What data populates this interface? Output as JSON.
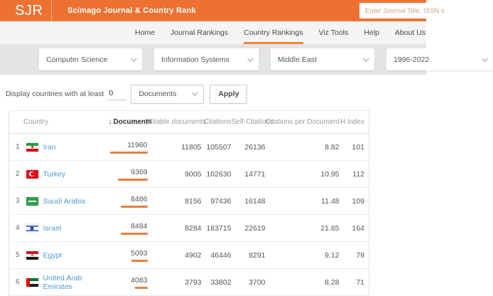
{
  "header": {
    "logo": "SJR",
    "title": "Scimago Journal & Country Rank",
    "search_placeholder": "Enter Journal Title, ISSN o"
  },
  "nav": {
    "items": [
      {
        "label": "Home",
        "active": false
      },
      {
        "label": "Journal Rankings",
        "active": false
      },
      {
        "label": "Country Rankings",
        "active": true
      },
      {
        "label": "Viz Tools",
        "active": false
      },
      {
        "label": "Help",
        "active": false
      },
      {
        "label": "About Us",
        "active": false
      }
    ]
  },
  "filters": {
    "subject_area": "Computer Science",
    "subject_category": "Information Systems",
    "region": "Middle East",
    "year_range": "1996-2022"
  },
  "controls": {
    "display_label": "Display countries with at least",
    "min_value": "0",
    "metric": "Documents",
    "apply_label": "Apply"
  },
  "table": {
    "sort_icon": "↓",
    "sorted_column": "Documents",
    "columns": [
      "Country",
      "Documents",
      "Citable documents",
      "Citations",
      "Self-Citations",
      "Citations per Document",
      "H index"
    ],
    "rows": [
      {
        "rank": "1",
        "country": "Iran",
        "flag": "iran",
        "documents": 11960,
        "citable_documents": 11805,
        "citations": 105507,
        "self_citations": 26136,
        "citations_per_document": "8.82",
        "h_index": 101
      },
      {
        "rank": "2",
        "country": "Turkey",
        "flag": "turkey",
        "documents": 9369,
        "citable_documents": 9005,
        "citations": 102630,
        "self_citations": 14771,
        "citations_per_document": "10.95",
        "h_index": 112
      },
      {
        "rank": "3",
        "country": "Saudi Arabia",
        "flag": "saudi",
        "documents": 8486,
        "citable_documents": 8156,
        "citations": 97436,
        "self_citations": 16148,
        "citations_per_document": "11.48",
        "h_index": 109
      },
      {
        "rank": "4",
        "country": "Israel",
        "flag": "israel",
        "documents": 8484,
        "citable_documents": 8284,
        "citations": 183715,
        "self_citations": 22619,
        "citations_per_document": "21.65",
        "h_index": 164
      },
      {
        "rank": "5",
        "country": "Egypt",
        "flag": "egypt",
        "documents": 5093,
        "citable_documents": 4902,
        "citations": 46446,
        "self_citations": 8291,
        "citations_per_document": "9.12",
        "h_index": 79
      },
      {
        "rank": "6",
        "country": "United Arab Emirates",
        "flag": "uae",
        "documents": 4083,
        "citable_documents": 3793,
        "citations": 33802,
        "self_citations": 3700,
        "citations_per_document": "8.28",
        "h_index": 71
      }
    ]
  },
  "colors": {
    "header_bg": "#ed7232",
    "accent_orange": "#e2813c",
    "active_tab_underline": "#ed8a3c",
    "link_blue": "#4f9bd5",
    "nav_bg": "#f4f4f4",
    "filter_bg": "#e4e4e4"
  }
}
